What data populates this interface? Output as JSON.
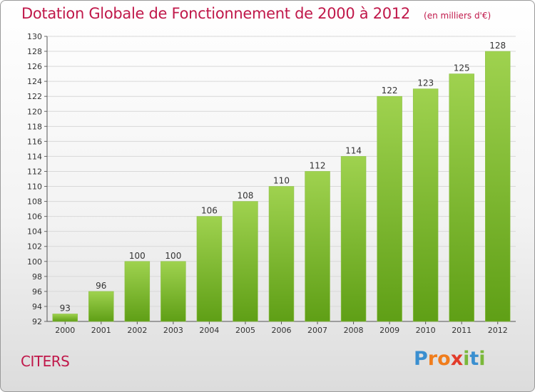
{
  "header": {
    "title": "Dotation Globale de Fonctionnement de 2000 à 2012",
    "unit": "(en milliers d'€)"
  },
  "footer": {
    "commune": "CITERS",
    "logo_letters": [
      "P",
      "r",
      "o",
      "x",
      "i",
      "t",
      "i"
    ],
    "logo_colors": [
      "#3a8fd0",
      "#f07d1c",
      "#f07d1c",
      "#e23b2a",
      "#7ab83a",
      "#3a8fd0",
      "#7ab83a"
    ]
  },
  "chart_data": {
    "type": "bar",
    "categories": [
      "2000",
      "2001",
      "2002",
      "2003",
      "2004",
      "2005",
      "2006",
      "2007",
      "2008",
      "2009",
      "2010",
      "2011",
      "2012"
    ],
    "values": [
      93,
      96,
      100,
      100,
      106,
      108,
      110,
      112,
      114,
      122,
      123,
      125,
      128
    ],
    "title": "Dotation Globale de Fonctionnement de 2000 à 2012",
    "ylim": [
      92,
      130
    ],
    "ytick_step": 2,
    "grid": true,
    "bar_color_top": "#9fd24f",
    "bar_color_bottom": "#5f9f16",
    "title_color": "#c0184a"
  }
}
